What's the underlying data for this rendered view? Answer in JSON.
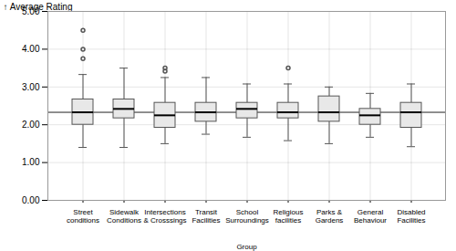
{
  "chart_data": {
    "type": "box",
    "xlabel": "Group",
    "ylabel": "Average Rating",
    "categories": [
      "Street\nconditions",
      "Sidewalk\nConditions",
      "Intersections\n& Crosssings",
      "Transit\nFacilities",
      "School\nSurroundings",
      "Religious\nfacilities",
      "Parks &\nGardens",
      "General\nBehaviour",
      "Disabled\nFacilities"
    ],
    "boxes": [
      {
        "q1": 2.0,
        "median": 2.33,
        "q3": 2.67,
        "whisker_low": 1.4,
        "whisker_high": 3.33,
        "outliers": [
          3.75,
          4.0,
          4.5
        ]
      },
      {
        "q1": 2.17,
        "median": 2.42,
        "q3": 2.67,
        "whisker_low": 1.4,
        "whisker_high": 3.5,
        "outliers": []
      },
      {
        "q1": 1.92,
        "median": 2.25,
        "q3": 2.58,
        "whisker_low": 1.5,
        "whisker_high": 3.25,
        "outliers": [
          3.42,
          3.5
        ]
      },
      {
        "q1": 2.08,
        "median": 2.33,
        "q3": 2.58,
        "whisker_low": 1.75,
        "whisker_high": 3.25,
        "outliers": []
      },
      {
        "q1": 2.17,
        "median": 2.42,
        "q3": 2.58,
        "whisker_low": 1.67,
        "whisker_high": 3.08,
        "outliers": []
      },
      {
        "q1": 2.17,
        "median": 2.33,
        "q3": 2.58,
        "whisker_low": 1.58,
        "whisker_high": 3.08,
        "outliers": [
          3.5
        ]
      },
      {
        "q1": 2.08,
        "median": 2.33,
        "q3": 2.75,
        "whisker_low": 1.5,
        "whisker_high": 3.0,
        "outliers": []
      },
      {
        "q1": 2.0,
        "median": 2.25,
        "q3": 2.42,
        "whisker_low": 1.67,
        "whisker_high": 2.83,
        "outliers": []
      },
      {
        "q1": 1.92,
        "median": 2.33,
        "q3": 2.58,
        "whisker_low": 1.42,
        "whisker_high": 3.08,
        "outliers": []
      }
    ],
    "global_median": 2.33,
    "ylim": [
      0.0,
      5.0
    ],
    "yticks": [
      {
        "value": 0.0,
        "label": "0.00"
      },
      {
        "value": 1.0,
        "label": "1.00"
      },
      {
        "value": 2.0,
        "label": "2.00"
      },
      {
        "value": 3.0,
        "label": "3.00"
      },
      {
        "value": 4.0,
        "label": "4.00"
      },
      {
        "value": 5.0,
        "label": "5.00"
      }
    ],
    "color": "#e8e8e8",
    "grid": true
  }
}
